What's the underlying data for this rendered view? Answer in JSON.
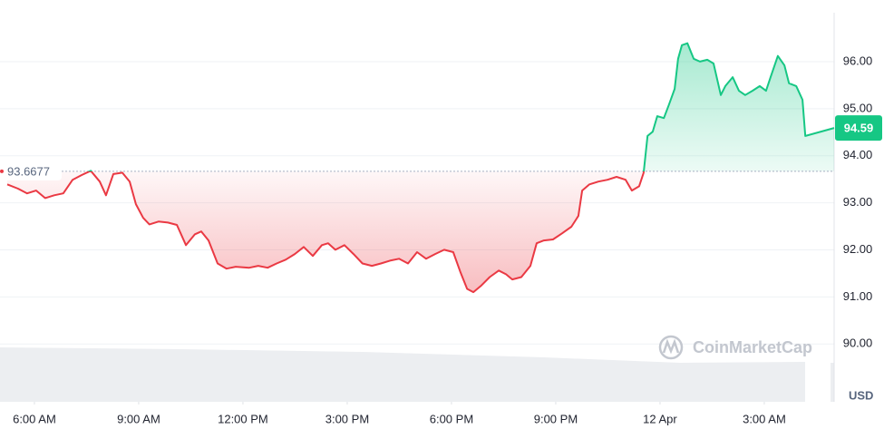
{
  "chart_data": {
    "type": "line",
    "x": [
      5.22,
      5.53,
      5.79,
      6.05,
      6.31,
      6.57,
      6.83,
      7.1,
      7.36,
      7.62,
      7.88,
      8.06,
      8.27,
      8.53,
      8.74,
      8.92,
      9.13,
      9.31,
      9.57,
      9.84,
      10.1,
      10.36,
      10.62,
      10.8,
      11.01,
      11.27,
      11.53,
      11.79,
      12.18,
      12.44,
      12.71,
      12.97,
      13.23,
      13.49,
      13.75,
      14.01,
      14.27,
      14.45,
      14.66,
      14.92,
      15.18,
      15.44,
      15.71,
      15.97,
      16.23,
      16.49,
      16.75,
      17.01,
      17.27,
      17.53,
      17.79,
      18.05,
      18.26,
      18.45,
      18.63,
      18.84,
      19.1,
      19.36,
      19.57,
      19.75,
      20.01,
      20.27,
      20.45,
      20.66,
      20.92,
      21.18,
      21.45,
      21.65,
      21.76,
      21.97,
      22.23,
      22.49,
      22.75,
      23.01,
      23.19,
      23.4,
      23.53,
      23.64,
      23.79,
      23.92,
      24.11,
      24.26,
      24.42,
      24.52,
      24.63,
      24.79,
      24.97,
      25.15,
      25.36,
      25.54,
      25.75,
      25.88,
      26.09,
      26.27,
      26.45,
      26.66,
      26.87,
      27.05,
      27.18,
      27.39,
      27.58,
      27.71,
      27.92,
      28.1,
      28.18,
      29.01
    ],
    "values": [
      93.39,
      93.3,
      93.2,
      93.26,
      93.1,
      93.16,
      93.2,
      93.49,
      93.59,
      93.68,
      93.45,
      93.16,
      93.61,
      93.64,
      93.45,
      92.97,
      92.68,
      92.54,
      92.6,
      92.58,
      92.53,
      92.1,
      92.33,
      92.39,
      92.2,
      91.71,
      91.6,
      91.64,
      91.62,
      91.66,
      91.62,
      91.71,
      91.79,
      91.91,
      92.06,
      91.87,
      92.1,
      92.14,
      92.0,
      92.1,
      91.91,
      91.71,
      91.66,
      91.71,
      91.77,
      91.81,
      91.71,
      91.95,
      91.81,
      91.91,
      92.0,
      91.95,
      91.52,
      91.17,
      91.1,
      91.23,
      91.42,
      91.56,
      91.48,
      91.37,
      91.42,
      91.66,
      92.14,
      92.2,
      92.22,
      92.35,
      92.49,
      92.72,
      93.26,
      93.39,
      93.45,
      93.49,
      93.55,
      93.49,
      93.26,
      93.35,
      93.64,
      94.42,
      94.51,
      94.84,
      94.8,
      95.09,
      95.42,
      96.06,
      96.35,
      96.39,
      96.06,
      96.0,
      96.04,
      95.96,
      95.29,
      95.48,
      95.67,
      95.38,
      95.29,
      95.38,
      95.48,
      95.38,
      95.67,
      96.12,
      95.92,
      95.54,
      95.48,
      95.19,
      94.42,
      94.59
    ],
    "baseline": 93.6677,
    "up_color": "#16c784",
    "down_color": "#ea3943",
    "xlim": [
      5.01,
      29.01
    ],
    "xticks": [
      {
        "value": 6,
        "label": "6:00 AM"
      },
      {
        "value": 9,
        "label": "9:00 AM"
      },
      {
        "value": 12,
        "label": "12:00 PM"
      },
      {
        "value": 15,
        "label": "3:00 PM"
      },
      {
        "value": 18,
        "label": "6:00 PM"
      },
      {
        "value": 21,
        "label": "9:00 PM"
      },
      {
        "value": 24,
        "label": "12 Apr"
      },
      {
        "value": 27,
        "label": "3:00 AM"
      }
    ],
    "ylim": [
      88.77,
      97.04
    ],
    "yticks": [
      {
        "value": 90,
        "label": "90.00"
      },
      {
        "value": 91,
        "label": "91.00"
      },
      {
        "value": 92,
        "label": "92.00"
      },
      {
        "value": 93,
        "label": "93.00"
      },
      {
        "value": 94,
        "label": "94.00"
      },
      {
        "value": 95,
        "label": "95.00"
      },
      {
        "value": 96,
        "label": "96.00"
      }
    ],
    "grid": true,
    "currency_label": "USD",
    "watermark": "CoinMarketCap"
  }
}
